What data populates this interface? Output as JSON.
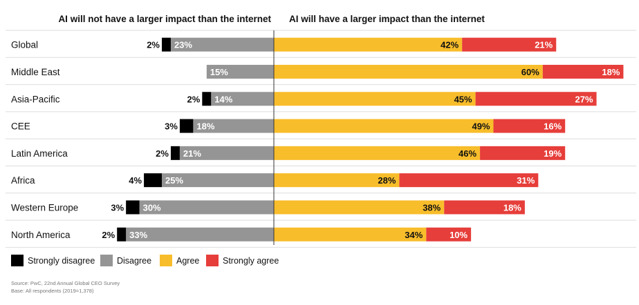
{
  "chart_data": {
    "type": "bar",
    "orientation": "horizontal-diverging",
    "left_header": "AI will not have a larger impact than the internet",
    "right_header": "AI will have a larger impact than the internet",
    "categories": [
      "Global",
      "Middle East",
      "Asia-Pacific",
      "CEE",
      "Latin America",
      "Africa",
      "Western Europe",
      "North America"
    ],
    "series": [
      {
        "name": "Strongly disagree",
        "side": "left",
        "color": "#000000",
        "values": [
          2,
          0,
          2,
          3,
          2,
          4,
          3,
          2
        ]
      },
      {
        "name": "Disagree",
        "side": "left",
        "color": "#959595",
        "values": [
          23,
          15,
          14,
          18,
          21,
          25,
          30,
          33
        ]
      },
      {
        "name": "Agree",
        "side": "right",
        "color": "#f8bd2b",
        "values": [
          42,
          60,
          45,
          49,
          46,
          28,
          38,
          34
        ]
      },
      {
        "name": "Strongly agree",
        "side": "right",
        "color": "#e63e3a",
        "values": [
          21,
          18,
          27,
          16,
          19,
          31,
          18,
          10
        ]
      }
    ],
    "value_suffix": "%",
    "legend_position": "bottom-left",
    "grid": false
  },
  "footnote": {
    "source": "Source: PwC, 22nd Annual Global CEO Survey",
    "base": "Base: All respondents (2019=1,378)"
  }
}
